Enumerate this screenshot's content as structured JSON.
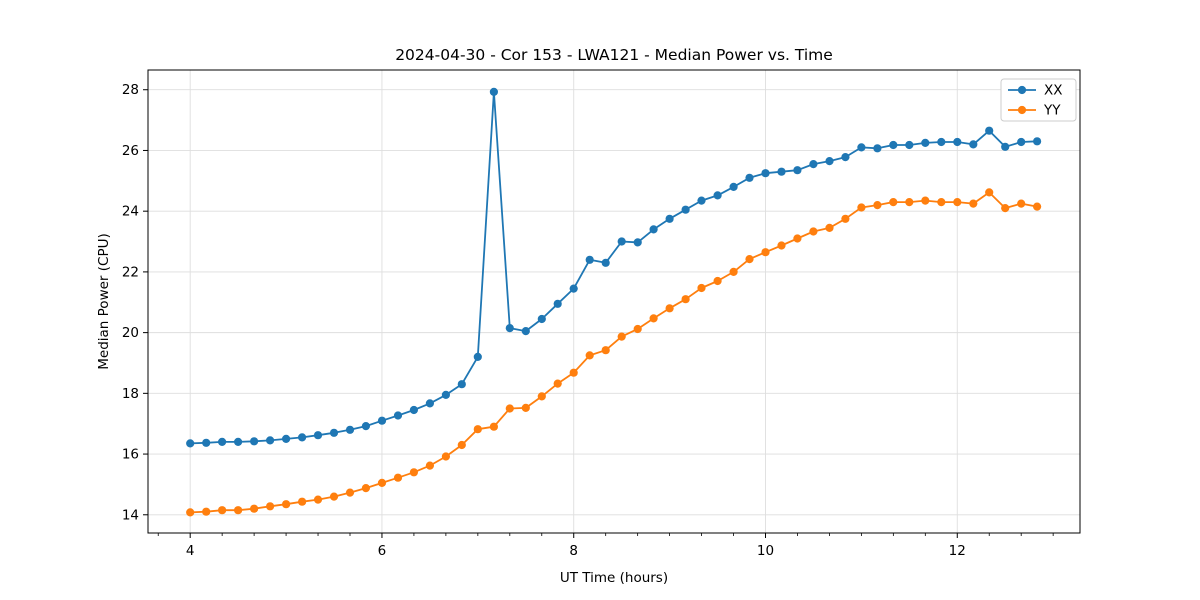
{
  "figure": {
    "title": "2024-04-30 - Cor 153 - LWA121 - Median Power vs. Time"
  },
  "chart_data": {
    "type": "line",
    "title": "2024-04-30 - Cor 153 - LWA121 - Median Power vs. Time",
    "xlabel": "UT Time (hours)",
    "ylabel": "Median Power (CPU)",
    "xlim": [
      3.56,
      13.28
    ],
    "ylim": [
      13.4,
      28.65
    ],
    "xticks": [
      4,
      6,
      8,
      10,
      12
    ],
    "yticks": [
      14,
      16,
      18,
      20,
      22,
      24,
      26,
      28
    ],
    "x_minor_tick_step": 0.333,
    "grid": true,
    "legend": {
      "position": "upper right",
      "entries": [
        "XX",
        "YY"
      ]
    },
    "x": [
      4.0,
      4.167,
      4.333,
      4.5,
      4.667,
      4.833,
      5.0,
      5.167,
      5.333,
      5.5,
      5.667,
      5.833,
      6.0,
      6.167,
      6.333,
      6.5,
      6.667,
      6.833,
      7.0,
      7.167,
      7.333,
      7.5,
      7.667,
      7.833,
      8.0,
      8.167,
      8.333,
      8.5,
      8.667,
      8.833,
      9.0,
      9.167,
      9.333,
      9.5,
      9.667,
      9.833,
      10.0,
      10.167,
      10.333,
      10.5,
      10.667,
      10.833,
      11.0,
      11.167,
      11.333,
      11.5,
      11.667,
      11.833,
      12.0,
      12.167,
      12.333,
      12.5,
      12.667,
      12.833
    ],
    "series": [
      {
        "name": "XX",
        "color": "#1f77b4",
        "values": [
          16.35,
          16.37,
          16.4,
          16.4,
          16.42,
          16.45,
          16.5,
          16.55,
          16.62,
          16.7,
          16.8,
          16.92,
          17.1,
          17.27,
          17.45,
          17.67,
          17.95,
          18.3,
          19.2,
          27.93,
          20.15,
          20.05,
          20.45,
          20.95,
          21.45,
          22.4,
          22.3,
          23.0,
          22.97,
          23.4,
          23.75,
          24.05,
          24.35,
          24.52,
          24.8,
          25.1,
          25.25,
          25.3,
          25.35,
          25.55,
          25.65,
          25.78,
          26.1,
          26.07,
          26.18,
          26.18,
          26.25,
          26.28,
          26.28,
          26.2,
          26.65,
          26.12,
          26.28,
          26.3
        ]
      },
      {
        "name": "YY",
        "color": "#ff7f0e",
        "values": [
          14.08,
          14.1,
          14.15,
          14.15,
          14.2,
          14.28,
          14.35,
          14.43,
          14.5,
          14.6,
          14.73,
          14.88,
          15.05,
          15.22,
          15.4,
          15.62,
          15.92,
          16.3,
          16.82,
          16.9,
          17.5,
          17.52,
          17.9,
          18.32,
          18.68,
          19.25,
          19.42,
          19.87,
          20.12,
          20.47,
          20.8,
          21.1,
          21.47,
          21.7,
          22.0,
          22.42,
          22.65,
          22.87,
          23.1,
          23.33,
          23.45,
          23.75,
          24.12,
          24.2,
          24.3,
          24.3,
          24.35,
          24.3,
          24.3,
          24.25,
          24.62,
          24.1,
          24.25,
          24.15
        ]
      }
    ]
  }
}
